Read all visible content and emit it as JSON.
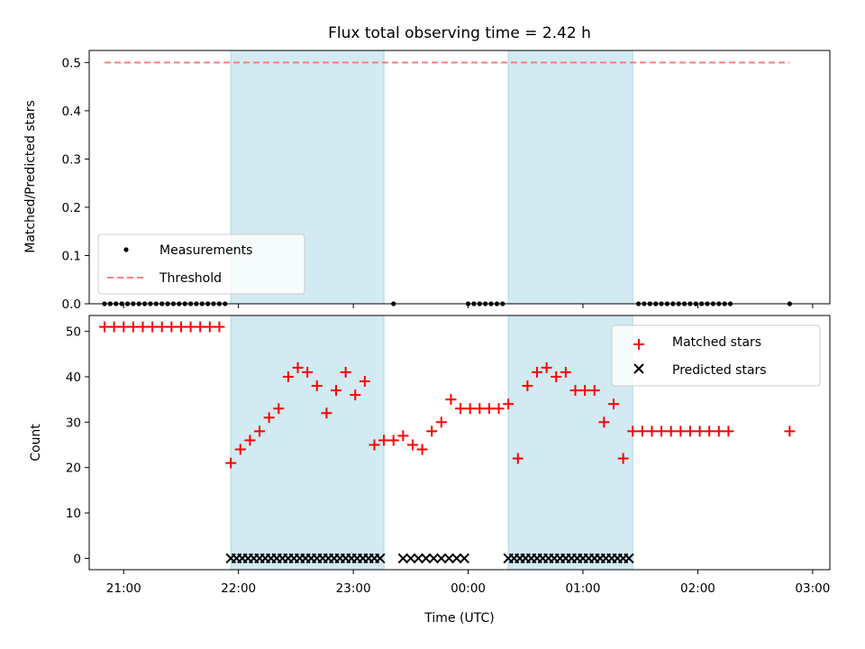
{
  "chart_data": [
    {
      "type": "scatter",
      "panel": "top",
      "title": "Flux total observing time = 2.42 h",
      "ylabel": "Matched/Predicted stars",
      "xlabel": "",
      "xlim": [
        "20:42",
        "03:09"
      ],
      "ylim": [
        0,
        0.525
      ],
      "yticks": [
        0.0,
        0.1,
        0.2,
        0.3,
        0.4,
        0.5
      ],
      "ytick_labels": [
        "0.0",
        "0.1",
        "0.2",
        "0.3",
        "0.4",
        "0.5"
      ],
      "xticks": [
        "21:00",
        "22:00",
        "23:00",
        "00:00",
        "01:00",
        "02:00",
        "03:00"
      ],
      "show_xtick_labels": false,
      "grid": false,
      "legend_position": "lower-left",
      "shaded_intervals": [
        [
          "21:56",
          "23:16"
        ],
        [
          "00:21",
          "01:26"
        ]
      ],
      "shade_color": "#add8e6",
      "threshold": {
        "name": "Threshold",
        "y": 0.5,
        "x_start": "20:50",
        "x_end": "02:48",
        "color": "#ff6b6b"
      },
      "series": [
        {
          "name": "Measurements",
          "color": "#000000",
          "x": [
            "20:50",
            "20:53",
            "20:56",
            "20:59",
            "21:02",
            "21:05",
            "21:08",
            "21:11",
            "21:14",
            "21:17",
            "21:20",
            "21:23",
            "21:26",
            "21:29",
            "21:32",
            "21:35",
            "21:38",
            "21:41",
            "21:44",
            "21:47",
            "21:50",
            "21:53",
            "23:21",
            "00:00",
            "00:03",
            "00:06",
            "00:09",
            "00:12",
            "00:15",
            "00:18",
            "01:29",
            "01:32",
            "01:35",
            "01:38",
            "01:41",
            "01:44",
            "01:47",
            "01:50",
            "01:53",
            "01:56",
            "01:59",
            "02:02",
            "02:05",
            "02:08",
            "02:11",
            "02:14",
            "02:17",
            "02:48"
          ],
          "y": [
            0,
            0,
            0,
            0,
            0,
            0,
            0,
            0,
            0,
            0,
            0,
            0,
            0,
            0,
            0,
            0,
            0,
            0,
            0,
            0,
            0,
            0,
            0,
            0,
            0,
            0,
            0,
            0,
            0,
            0,
            0,
            0,
            0,
            0,
            0,
            0,
            0,
            0,
            0,
            0,
            0,
            0,
            0,
            0,
            0,
            0,
            0,
            0
          ]
        }
      ]
    },
    {
      "type": "scatter",
      "panel": "bottom",
      "title": "",
      "ylabel": "Count",
      "xlabel": "Time (UTC)",
      "xlim": [
        "20:42",
        "03:09"
      ],
      "ylim": [
        -2.5,
        53.5
      ],
      "yticks": [
        0,
        10,
        20,
        30,
        40,
        50
      ],
      "ytick_labels": [
        "0",
        "10",
        "20",
        "30",
        "40",
        "50"
      ],
      "xticks": [
        "21:00",
        "22:00",
        "23:00",
        "00:00",
        "01:00",
        "02:00",
        "03:00"
      ],
      "xtick_labels": [
        "21:00",
        "22:00",
        "23:00",
        "00:00",
        "01:00",
        "02:00",
        "03:00"
      ],
      "grid": false,
      "legend_position": "top-right",
      "shaded_intervals": [
        [
          "21:56",
          "23:16"
        ],
        [
          "00:21",
          "01:26"
        ]
      ],
      "shade_color": "#add8e6",
      "series": [
        {
          "name": "Matched stars",
          "marker": "plus",
          "color": "#ff0000",
          "x": [
            "20:50",
            "20:55",
            "21:00",
            "21:05",
            "21:10",
            "21:15",
            "21:20",
            "21:25",
            "21:30",
            "21:35",
            "21:40",
            "21:45",
            "21:50",
            "21:56",
            "22:01",
            "22:06",
            "22:11",
            "22:16",
            "22:21",
            "22:26",
            "22:31",
            "22:36",
            "22:41",
            "22:46",
            "22:51",
            "22:56",
            "23:01",
            "23:06",
            "23:11",
            "23:16",
            "23:21",
            "23:26",
            "23:31",
            "23:36",
            "23:41",
            "23:46",
            "23:51",
            "23:56",
            "24:01",
            "24:06",
            "24:11",
            "24:16",
            "24:21",
            "24:26",
            "24:31",
            "24:36",
            "24:41",
            "24:46",
            "24:51",
            "24:56",
            "25:01",
            "25:06",
            "25:11",
            "25:16",
            "25:21",
            "25:26",
            "25:31",
            "25:36",
            "25:41",
            "25:46",
            "25:51",
            "25:56",
            "26:01",
            "26:06",
            "26:11",
            "26:16",
            "26:48"
          ],
          "y": [
            51,
            51,
            51,
            51,
            51,
            51,
            51,
            51,
            51,
            51,
            51,
            51,
            51,
            21,
            24,
            26,
            28,
            31,
            33,
            40,
            42,
            41,
            38,
            32,
            37,
            41,
            36,
            39,
            25,
            26,
            26,
            27,
            25,
            24,
            28,
            30,
            35,
            33,
            33,
            33,
            33,
            33,
            34,
            22,
            38,
            41,
            42,
            40,
            41,
            37,
            37,
            37,
            30,
            34,
            22,
            28,
            28,
            28,
            28,
            28,
            28,
            28,
            28,
            28,
            28,
            28,
            28
          ]
        },
        {
          "name": "Predicted stars",
          "marker": "x",
          "color": "#000000",
          "x": [
            "21:56",
            "21:59",
            "22:02",
            "22:05",
            "22:08",
            "22:11",
            "22:14",
            "22:17",
            "22:20",
            "22:23",
            "22:26",
            "22:29",
            "22:32",
            "22:35",
            "22:38",
            "22:41",
            "22:44",
            "22:47",
            "22:50",
            "22:53",
            "22:56",
            "22:59",
            "23:02",
            "23:05",
            "23:08",
            "23:11",
            "23:14",
            "23:26",
            "23:30",
            "23:34",
            "23:38",
            "23:42",
            "23:46",
            "23:50",
            "23:54",
            "23:58",
            "00:21",
            "00:24",
            "00:27",
            "00:30",
            "00:33",
            "00:36",
            "00:39",
            "00:42",
            "00:45",
            "00:48",
            "00:51",
            "00:54",
            "00:57",
            "01:00",
            "01:03",
            "01:06",
            "01:09",
            "01:12",
            "01:15",
            "01:18",
            "01:21",
            "01:24"
          ],
          "y": [
            0,
            0,
            0,
            0,
            0,
            0,
            0,
            0,
            0,
            0,
            0,
            0,
            0,
            0,
            0,
            0,
            0,
            0,
            0,
            0,
            0,
            0,
            0,
            0,
            0,
            0,
            0,
            0,
            0,
            0,
            0,
            0,
            0,
            0,
            0,
            0,
            0,
            0,
            0,
            0,
            0,
            0,
            0,
            0,
            0,
            0,
            0,
            0,
            0,
            0,
            0,
            0,
            0,
            0,
            0,
            0,
            0,
            0
          ]
        }
      ]
    }
  ]
}
